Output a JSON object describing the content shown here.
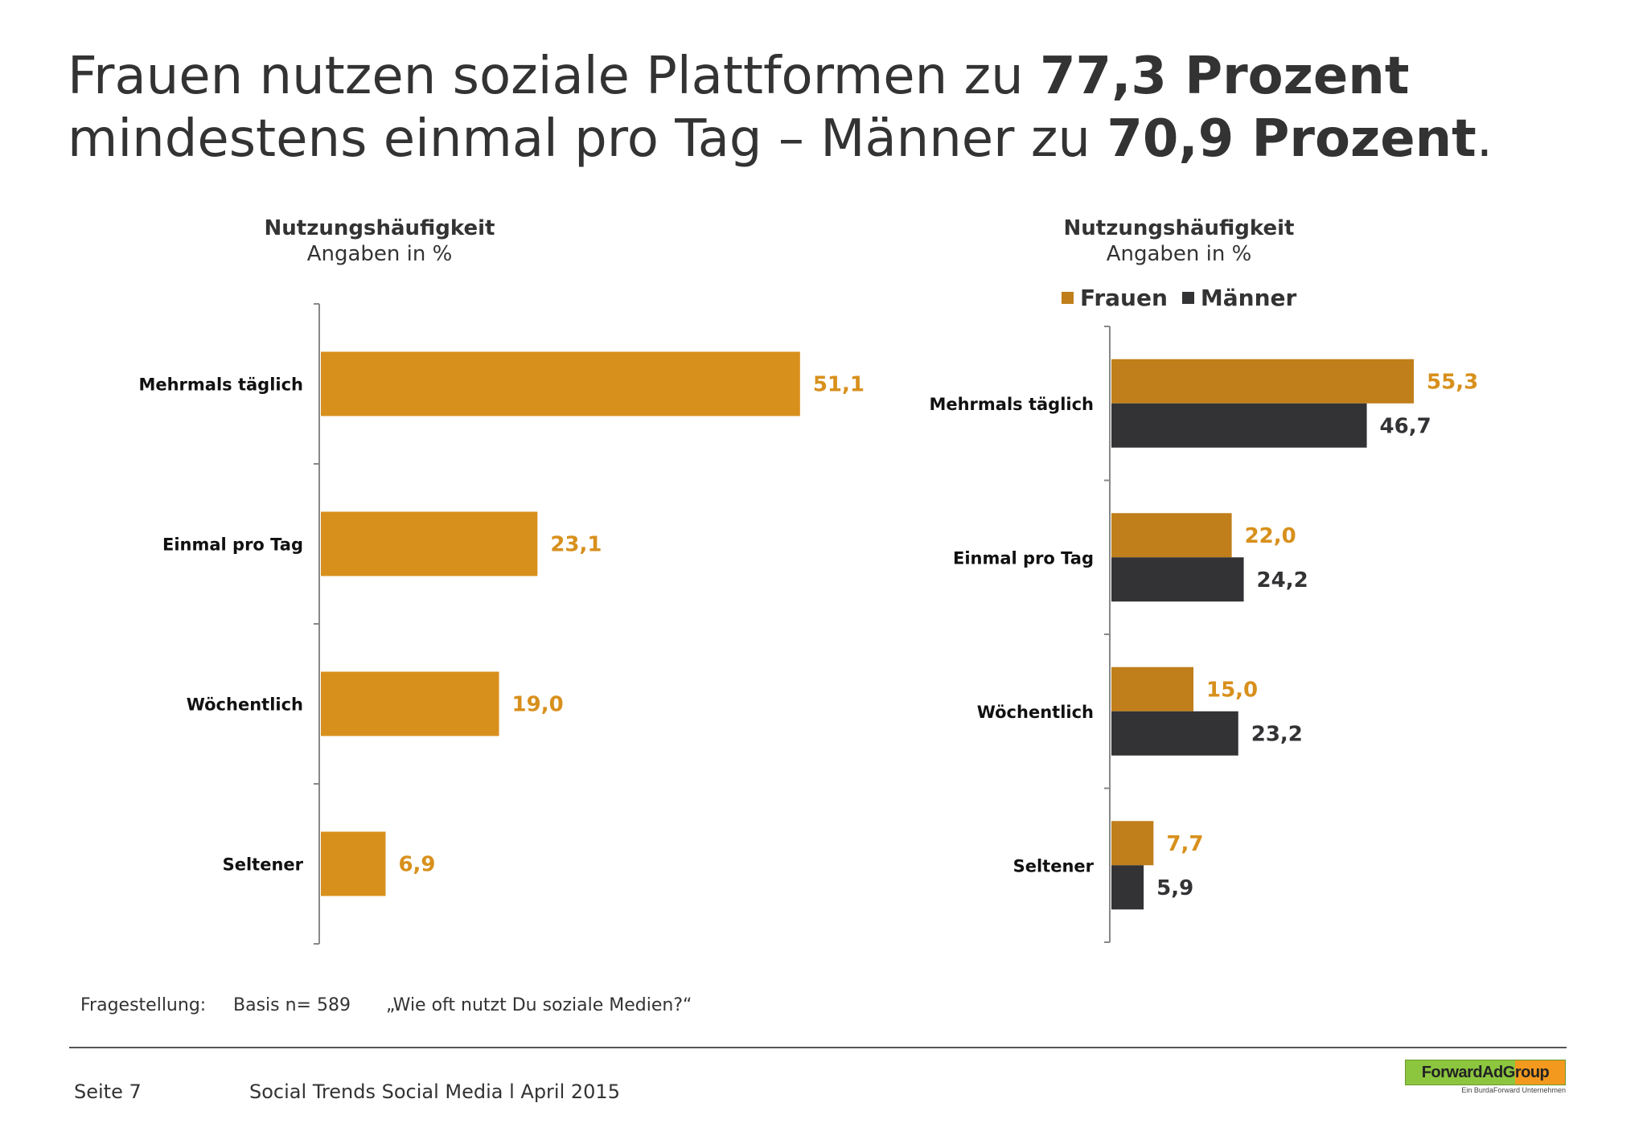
{
  "title": {
    "part1": "Frauen nutzen soziale Plattformen zu ",
    "bold1": "77,3 Prozent",
    "part2": "mindestens einmal pro Tag – Männer zu ",
    "bold2": "70,9 Prozent",
    "part3": "."
  },
  "colors": {
    "frauen": "#d8901c",
    "frauen_dark": "#c07f1a",
    "maenner": "#333235",
    "axis": "#888888"
  },
  "chart_data": [
    {
      "type": "bar",
      "orientation": "horizontal",
      "title": "Nutzungshäufigkeit",
      "subtitle": "Angaben in %",
      "categories": [
        "Mehrmals täglich",
        "Einmal pro Tag",
        "Wöchentlich",
        "Seltener"
      ],
      "series": [
        {
          "values": [
            51.1,
            23.1,
            19.0,
            6.9
          ],
          "labels": [
            "51,1",
            "23,1",
            "19,0",
            "6,9"
          ]
        }
      ],
      "xlim": [
        0,
        60
      ]
    },
    {
      "type": "bar",
      "orientation": "horizontal",
      "title": "Nutzungshäufigkeit",
      "subtitle": "Angaben in %",
      "legend": "top",
      "categories": [
        "Mehrmals täglich",
        "Einmal pro Tag",
        "Wöchentlich",
        "Seltener"
      ],
      "series": [
        {
          "name": "Frauen",
          "values": [
            55.3,
            22.0,
            15.0,
            7.7
          ],
          "labels": [
            "55,3",
            "22,0",
            "15,0",
            "7,7"
          ]
        },
        {
          "name": "Männer",
          "values": [
            46.7,
            24.2,
            23.2,
            5.9
          ],
          "labels": [
            "46,7",
            "24,2",
            "23,2",
            "5,9"
          ]
        }
      ],
      "xlim": [
        0,
        60
      ]
    }
  ],
  "footnote": {
    "label": "Fragestellung:",
    "basis": "Basis n= 589",
    "question": "„Wie oft nutzt Du soziale Medien?“"
  },
  "footer": {
    "page": "Seite 7",
    "report": "Social Trends Social Media l April 2015"
  },
  "logo": {
    "name": "ForwardAdGroup",
    "tagline": "Ein BurdaForward Unternehmen"
  }
}
